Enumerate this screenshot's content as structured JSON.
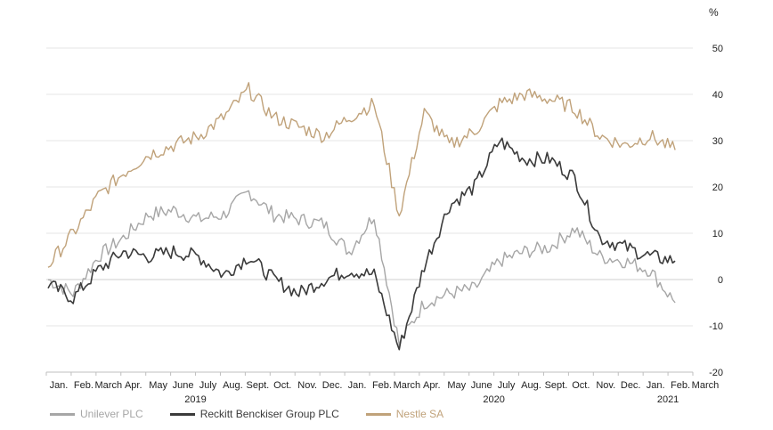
{
  "chart_data": {
    "type": "line",
    "unit_label": "%",
    "ylim": [
      -20,
      50
    ],
    "yticks": [
      "50",
      "40",
      "30",
      "20",
      "10",
      "0",
      "-10",
      "-20"
    ],
    "month_labels": [
      "Jan.",
      "Feb.",
      "March",
      "Apr.",
      "May",
      "June",
      "July",
      "Aug.",
      "Sept.",
      "Oct.",
      "Nov.",
      "Dec.",
      "Jan.",
      "Feb.",
      "March",
      "Apr.",
      "May",
      "June",
      "July",
      "Aug.",
      "Sept.",
      "Oct.",
      "Nov.",
      "Dec.",
      "Jan.",
      "Feb.",
      "March"
    ],
    "year_labels": [
      "2019",
      "2020",
      "2021"
    ],
    "grid": true,
    "legend_position": "bottom-left",
    "x": [
      "2019-01",
      "2019-02",
      "2019-03",
      "2019-04",
      "2019-05",
      "2019-06",
      "2019-07",
      "2019-08",
      "2019-09",
      "2019-10",
      "2019-11",
      "2019-12",
      "2020-01",
      "2020-02",
      "2020-03",
      "2020-04",
      "2020-05",
      "2020-06",
      "2020-07",
      "2020-08",
      "2020-09",
      "2020-10",
      "2020-11",
      "2020-12",
      "2021-01",
      "2021-02"
    ],
    "series": [
      {
        "name": "Unilever PLC",
        "color": "#a6a6a6",
        "values": [
          0,
          -3,
          5,
          9,
          14,
          15,
          13,
          14,
          19,
          14,
          13,
          12,
          6,
          14,
          -14,
          -5,
          -3,
          -2,
          4,
          6,
          7,
          11,
          5,
          4,
          2,
          -5
        ]
      },
      {
        "name": "Reckitt Benckiser Group PLC",
        "color": "#3b3b3b",
        "values": [
          -1,
          -4,
          2,
          6,
          5,
          6,
          5,
          1,
          5,
          0,
          -3,
          0,
          2,
          1,
          -15,
          3,
          16,
          20,
          30,
          26,
          26,
          22,
          9,
          7,
          5,
          4
        ]
      },
      {
        "name": "Nestle SA",
        "color": "#c0a27a",
        "values": [
          3,
          10,
          18,
          23,
          27,
          29,
          31,
          35,
          41,
          35,
          33,
          31,
          35,
          38,
          14,
          36,
          29,
          32,
          38,
          40,
          39,
          37,
          31,
          29,
          31,
          28
        ]
      }
    ]
  }
}
